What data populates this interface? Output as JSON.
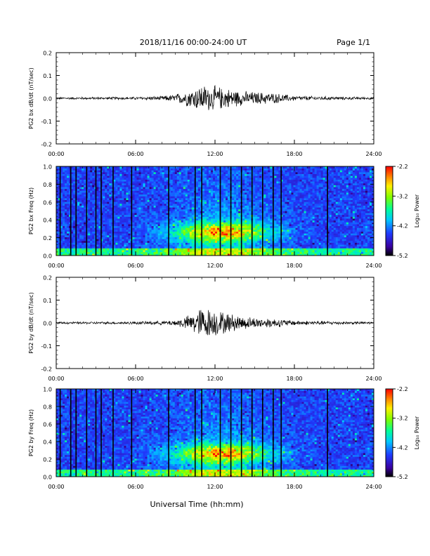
{
  "header": {
    "title": "2018/11/16  00:00-24:00 UT",
    "page": "Page 1/1"
  },
  "footer": {
    "xlabel": "Universal Time (hh:mm)"
  },
  "colorbar": {
    "ticks": [
      "-2.2",
      "-3.2",
      "-4.2",
      "-5.2"
    ],
    "label": "Log₁₀ Power",
    "range": [
      -5.2,
      -2.2
    ],
    "colormap": [
      "#000000",
      "#3a00a0",
      "#1e3cff",
      "#00c8ff",
      "#00ff9a",
      "#7dff00",
      "#fff000",
      "#ff8a00",
      "#ff0000"
    ]
  },
  "chart_data": [
    {
      "type": "line",
      "ylabel": "PG2 bx dB/dt (nT/sec)",
      "ylim": [
        -0.2,
        0.2
      ],
      "yticks": [
        "0.2",
        "0.1",
        "0.0",
        "-0.1",
        "-0.2"
      ],
      "xlim": [
        0,
        24
      ],
      "xticks": [
        "00:00",
        "06:00",
        "12:00",
        "18:00",
        "24:00"
      ],
      "color": "#000000",
      "envelope": {
        "hours": [
          0,
          2,
          4,
          6,
          8,
          9,
          10,
          11,
          12,
          13,
          14,
          15,
          16,
          17,
          18,
          20,
          22,
          24
        ],
        "amplitude": [
          0.004,
          0.005,
          0.005,
          0.006,
          0.009,
          0.016,
          0.035,
          0.055,
          0.05,
          0.04,
          0.03,
          0.026,
          0.024,
          0.018,
          0.01,
          0.008,
          0.006,
          0.005
        ]
      }
    },
    {
      "type": "heatmap",
      "ylabel": "PG2 bx Freq (Hz)",
      "ylim": [
        0.0,
        1.0
      ],
      "yticks": [
        "1.0",
        "0.8",
        "0.6",
        "0.4",
        "0.2",
        "0.0"
      ],
      "xlim": [
        0,
        24
      ],
      "xticks": [
        "00:00",
        "06:00",
        "12:00",
        "18:00",
        "24:00"
      ],
      "value_range": [
        -5.2,
        -2.2
      ],
      "gap_hours": [
        0.3,
        1.1,
        1.5,
        2.3,
        3.0,
        3.4,
        4.3,
        5.7,
        8.5,
        10.5,
        11.0,
        12.4,
        13.2,
        14.0,
        14.8,
        15.6,
        16.4,
        17.0,
        20.5
      ]
    },
    {
      "type": "line",
      "ylabel": "PG2 by dB/dt (nT/sec)",
      "ylim": [
        -0.2,
        0.2
      ],
      "yticks": [
        "0.2",
        "0.1",
        "0.0",
        "-0.1",
        "-0.2"
      ],
      "xlim": [
        0,
        24
      ],
      "xticks": [
        "00:00",
        "06:00",
        "12:00",
        "18:00",
        "24:00"
      ],
      "color": "#000000",
      "envelope": {
        "hours": [
          0,
          2,
          4,
          6,
          8,
          9,
          10,
          11,
          12,
          13,
          14,
          15,
          16,
          17,
          18,
          20,
          22,
          24
        ],
        "amplitude": [
          0.004,
          0.005,
          0.005,
          0.006,
          0.008,
          0.012,
          0.03,
          0.065,
          0.055,
          0.04,
          0.028,
          0.022,
          0.02,
          0.016,
          0.01,
          0.008,
          0.006,
          0.005
        ]
      }
    },
    {
      "type": "heatmap",
      "ylabel": "PG2 by Freq (Hz)",
      "ylim": [
        0.0,
        1.0
      ],
      "yticks": [
        "1.0",
        "0.8",
        "0.6",
        "0.4",
        "0.2",
        "0.0"
      ],
      "xlim": [
        0,
        24
      ],
      "xticks": [
        "00:00",
        "06:00",
        "12:00",
        "18:00",
        "24:00"
      ],
      "value_range": [
        -5.2,
        -2.2
      ],
      "gap_hours": [
        0.3,
        1.1,
        1.5,
        2.3,
        3.0,
        3.4,
        4.3,
        5.7,
        8.5,
        10.5,
        11.0,
        12.4,
        13.2,
        14.0,
        14.8,
        15.6,
        16.4,
        17.0,
        20.5
      ]
    }
  ]
}
